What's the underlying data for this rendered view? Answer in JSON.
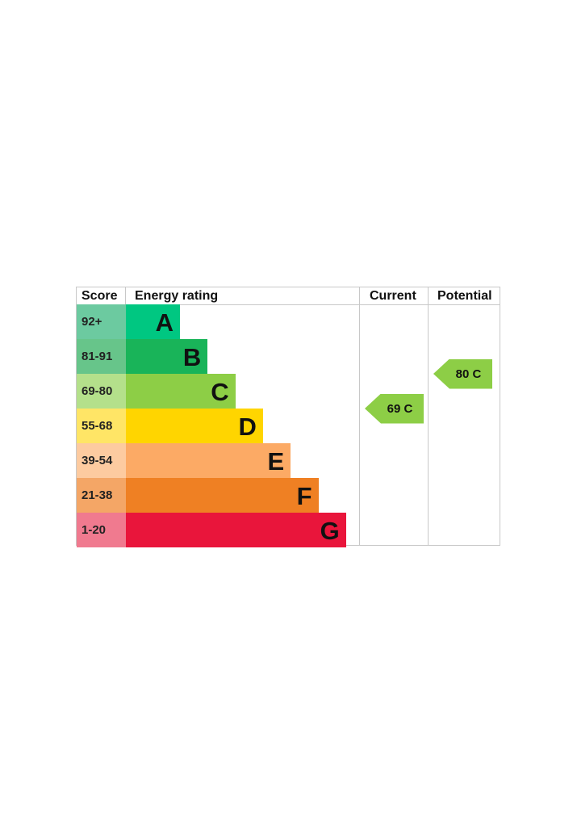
{
  "chart_data": {
    "type": "bar",
    "headers": {
      "score": "Score",
      "rating": "Energy rating",
      "current": "Current",
      "potential": "Potential"
    },
    "bands": [
      {
        "letter": "A",
        "range": "92+",
        "color": "#00c781",
        "score_color": "#6ccaa0"
      },
      {
        "letter": "B",
        "range": "81-91",
        "color": "#19b459",
        "score_color": "#67c58a"
      },
      {
        "letter": "C",
        "range": "69-80",
        "color": "#8dce46",
        "score_color": "#b4e08b"
      },
      {
        "letter": "D",
        "range": "55-68",
        "color": "#ffd500",
        "score_color": "#ffe566"
      },
      {
        "letter": "E",
        "range": "39-54",
        "color": "#fcaa65",
        "score_color": "#fdcba0"
      },
      {
        "letter": "F",
        "range": "21-38",
        "color": "#ef8023",
        "score_color": "#f4a666"
      },
      {
        "letter": "G",
        "range": "1-20",
        "color": "#e9153b",
        "score_color": "#f07a8f"
      }
    ],
    "current": {
      "value": 69,
      "band": "C",
      "label": "69 C",
      "color": "#8dce46"
    },
    "potential": {
      "value": 80,
      "band": "C",
      "label": "80 C",
      "color": "#8dce46"
    }
  }
}
